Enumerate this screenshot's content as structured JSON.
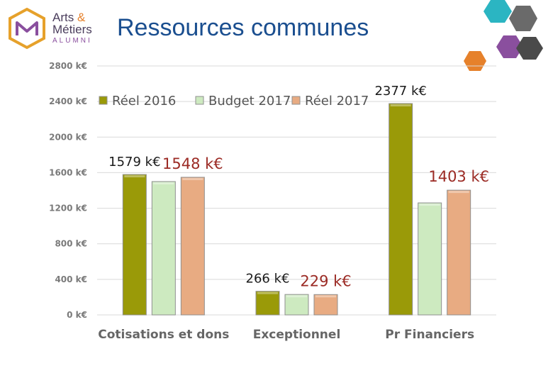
{
  "header": {
    "title": "Ressources communes",
    "logo_line1": "Arts ",
    "logo_amp": "&",
    "logo_line2": "Métiers",
    "logo_line3": "ALUMNI"
  },
  "chart_data": {
    "type": "bar",
    "categories": [
      "Cotisations et dons",
      "Exceptionnel",
      "Pr Financiers"
    ],
    "series": [
      {
        "name": "Réel 2016",
        "values": [
          1579,
          266,
          2377
        ],
        "color": "#9a9a08"
      },
      {
        "name": "Budget 2017",
        "values": [
          1500,
          230,
          1260
        ],
        "color": "#cdeac0"
      },
      {
        "name": "Réel 2017",
        "values": [
          1548,
          229,
          1403
        ],
        "color": "#e8ab82"
      }
    ],
    "data_labels": [
      {
        "text": "1579 k€",
        "category": 0,
        "series": 0
      },
      {
        "text": "1548 k€",
        "category": 0,
        "series": 2
      },
      {
        "text": "266 k€",
        "category": 1,
        "series": 0
      },
      {
        "text": "229 k€",
        "category": 1,
        "series": 2
      },
      {
        "text": "2377 k€",
        "category": 2,
        "series": 0
      },
      {
        "text": "1403 k€",
        "category": 2,
        "series": 2
      }
    ],
    "yticks": [
      {
        "value": 0,
        "label": "0 k€"
      },
      {
        "value": 400,
        "label": "400 k€"
      },
      {
        "value": 800,
        "label": "800 k€"
      },
      {
        "value": 1200,
        "label": "1200 k€"
      },
      {
        "value": 1600,
        "label": "1600 k€"
      },
      {
        "value": 2000,
        "label": "2000 k€"
      },
      {
        "value": 2400,
        "label": "2400 k€"
      },
      {
        "value": 2800,
        "label": "2800 k€"
      }
    ],
    "ylim": [
      0,
      2800
    ],
    "grid": true,
    "legend_position": "top",
    "unit": "k€"
  }
}
